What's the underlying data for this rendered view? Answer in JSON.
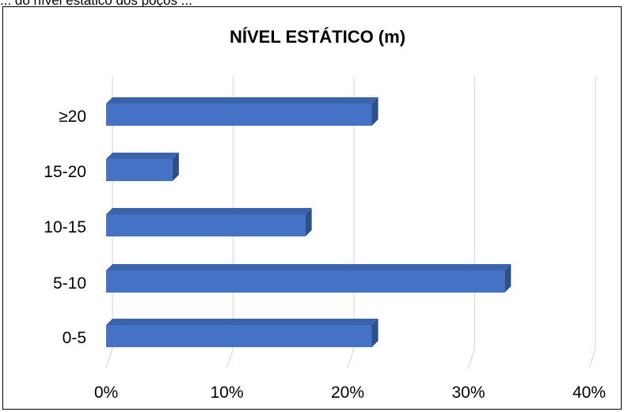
{
  "caption": "... do nível estático dos poços ...",
  "chart_data": {
    "type": "bar",
    "orientation": "horizontal",
    "style": "3d",
    "title": "NÍVEL ESTÁTICO (m)",
    "categories": [
      "0-5",
      "5-10",
      "10-15",
      "15-20",
      "≥20"
    ],
    "values": [
      22,
      33,
      16.5,
      5.5,
      22
    ],
    "x_unit": "%",
    "xlim": [
      0,
      40
    ],
    "x_ticks": [
      0,
      10,
      20,
      30,
      40
    ],
    "x_tick_labels": [
      "0%",
      "10%",
      "20%",
      "30%",
      "40%"
    ],
    "grid": "vertical",
    "legend": "none",
    "bar_color": "#4472C4",
    "bar_top_color": "#3A63AC",
    "bar_side_color": "#2E4E86",
    "grid_color": "#D9D9D9"
  }
}
